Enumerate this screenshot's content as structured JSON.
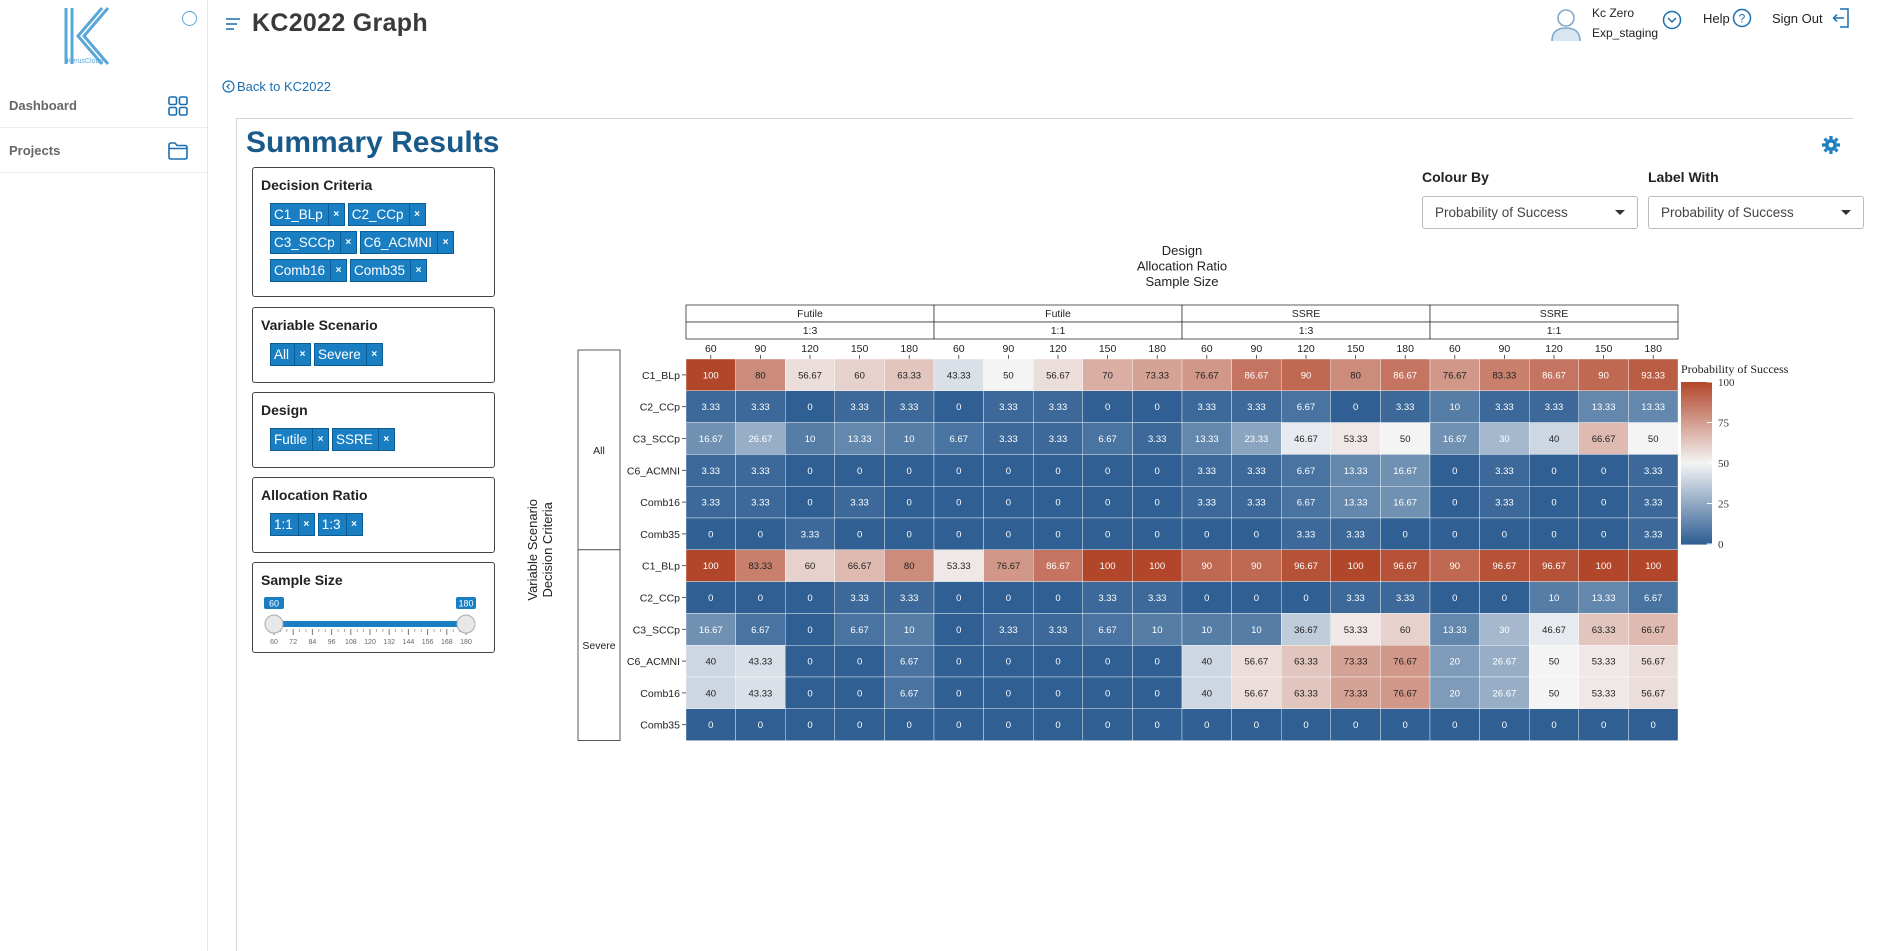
{
  "sidebar": {
    "logo_text": "KerusCloud",
    "nav": [
      {
        "label": "Dashboard",
        "icon": "grid-icon"
      },
      {
        "label": "Projects",
        "icon": "folder-icon"
      }
    ]
  },
  "header": {
    "title": "KC2022 Graph",
    "user_name": "Kc Zero",
    "user_env": "Exp_staging",
    "help_label": "Help",
    "signout_label": "Sign Out"
  },
  "back_link": "Back to KC2022",
  "summary": {
    "title": "Summary Results",
    "filters": {
      "decision_criteria": {
        "title": "Decision Criteria",
        "chips": [
          "C1_BLp",
          "C2_CCp",
          "C3_SCCp",
          "C6_ACMNI",
          "Comb16",
          "Comb35"
        ]
      },
      "variable_scenario": {
        "title": "Variable Scenario",
        "chips": [
          "All",
          "Severe"
        ]
      },
      "design": {
        "title": "Design",
        "chips": [
          "Futile",
          "SSRE"
        ]
      },
      "allocation_ratio": {
        "title": "Allocation Ratio",
        "chips": [
          "1:1",
          "1:3"
        ]
      },
      "sample_size": {
        "title": "Sample Size",
        "min_label": "60",
        "max_label": "180",
        "ticks": [
          "60",
          "72",
          "84",
          "96",
          "108",
          "120",
          "132",
          "144",
          "156",
          "168",
          "180"
        ],
        "value": [
          60,
          180
        ]
      }
    },
    "colour_by": {
      "label": "Colour By",
      "value": "Probability of Success"
    },
    "label_with": {
      "label": "Label With",
      "value": "Probability of Success"
    }
  },
  "colors": {
    "accent": "#1a7ec2",
    "heat_low": "#2f5f93",
    "heat_mid": "#f4f4f4",
    "heat_high": "#b2462a"
  },
  "chart_data": {
    "type": "heatmap",
    "title_lines": [
      "Design",
      "Allocation Ratio",
      "Sample Size"
    ],
    "ylabel_lines": [
      "Variable Scenario",
      "Decision Criteria"
    ],
    "legend_title": "Probability of Success",
    "legend_ticks": [
      100,
      75,
      50,
      25,
      0
    ],
    "colour_range": [
      0,
      100
    ],
    "column_groups": [
      {
        "design": "Futile",
        "ratio": "1:3"
      },
      {
        "design": "Futile",
        "ratio": "1:1"
      },
      {
        "design": "SSRE",
        "ratio": "1:3"
      },
      {
        "design": "SSRE",
        "ratio": "1:1"
      }
    ],
    "sample_sizes": [
      "60",
      "90",
      "120",
      "150",
      "180"
    ],
    "row_groups": [
      "All",
      "Severe"
    ],
    "row_labels": [
      "C1_BLp",
      "C2_CCp",
      "C3_SCCp",
      "C6_ACMNI",
      "Comb16",
      "Comb35"
    ],
    "values": [
      [
        100,
        80,
        56.67,
        60,
        63.33,
        43.33,
        50,
        56.67,
        70,
        73.33,
        76.67,
        86.67,
        90,
        80,
        86.67,
        76.67,
        83.33,
        86.67,
        90,
        93.33
      ],
      [
        3.33,
        3.33,
        0,
        3.33,
        3.33,
        0,
        3.33,
        3.33,
        0,
        0,
        3.33,
        3.33,
        6.67,
        0,
        3.33,
        10,
        3.33,
        3.33,
        13.33,
        13.33
      ],
      [
        16.67,
        26.67,
        10,
        13.33,
        10,
        6.67,
        3.33,
        3.33,
        6.67,
        3.33,
        13.33,
        23.33,
        46.67,
        53.33,
        50,
        16.67,
        30,
        40,
        66.67,
        50
      ],
      [
        3.33,
        3.33,
        0,
        0,
        0,
        0,
        0,
        0,
        0,
        0,
        3.33,
        3.33,
        6.67,
        13.33,
        16.67,
        0,
        3.33,
        0,
        0,
        3.33
      ],
      [
        3.33,
        3.33,
        0,
        3.33,
        0,
        0,
        0,
        0,
        0,
        0,
        3.33,
        3.33,
        6.67,
        13.33,
        16.67,
        0,
        3.33,
        0,
        0,
        3.33
      ],
      [
        0,
        0,
        3.33,
        0,
        0,
        0,
        0,
        0,
        0,
        0,
        0,
        0,
        3.33,
        3.33,
        0,
        0,
        0,
        0,
        0,
        3.33
      ],
      [
        100,
        83.33,
        60,
        66.67,
        80,
        53.33,
        76.67,
        86.67,
        100,
        100,
        90,
        90,
        96.67,
        100,
        96.67,
        90,
        96.67,
        96.67,
        100,
        100
      ],
      [
        0,
        0,
        0,
        3.33,
        3.33,
        0,
        0,
        0,
        3.33,
        3.33,
        0,
        0,
        0,
        3.33,
        3.33,
        0,
        0,
        10,
        13.33,
        6.67
      ],
      [
        16.67,
        6.67,
        0,
        6.67,
        10,
        0,
        3.33,
        3.33,
        6.67,
        10,
        10,
        10,
        36.67,
        53.33,
        60,
        13.33,
        30,
        46.67,
        63.33,
        66.67
      ],
      [
        40,
        43.33,
        0,
        0,
        6.67,
        0,
        0,
        0,
        0,
        0,
        40,
        56.67,
        63.33,
        73.33,
        76.67,
        20,
        26.67,
        50,
        53.33,
        56.67
      ],
      [
        40,
        43.33,
        0,
        0,
        6.67,
        0,
        0,
        0,
        0,
        0,
        40,
        56.67,
        63.33,
        73.33,
        76.67,
        20,
        26.67,
        50,
        53.33,
        56.67
      ],
      [
        0,
        0,
        0,
        0,
        0,
        0,
        0,
        0,
        0,
        0,
        0,
        0,
        0,
        0,
        0,
        0,
        0,
        0,
        0,
        0
      ]
    ]
  }
}
